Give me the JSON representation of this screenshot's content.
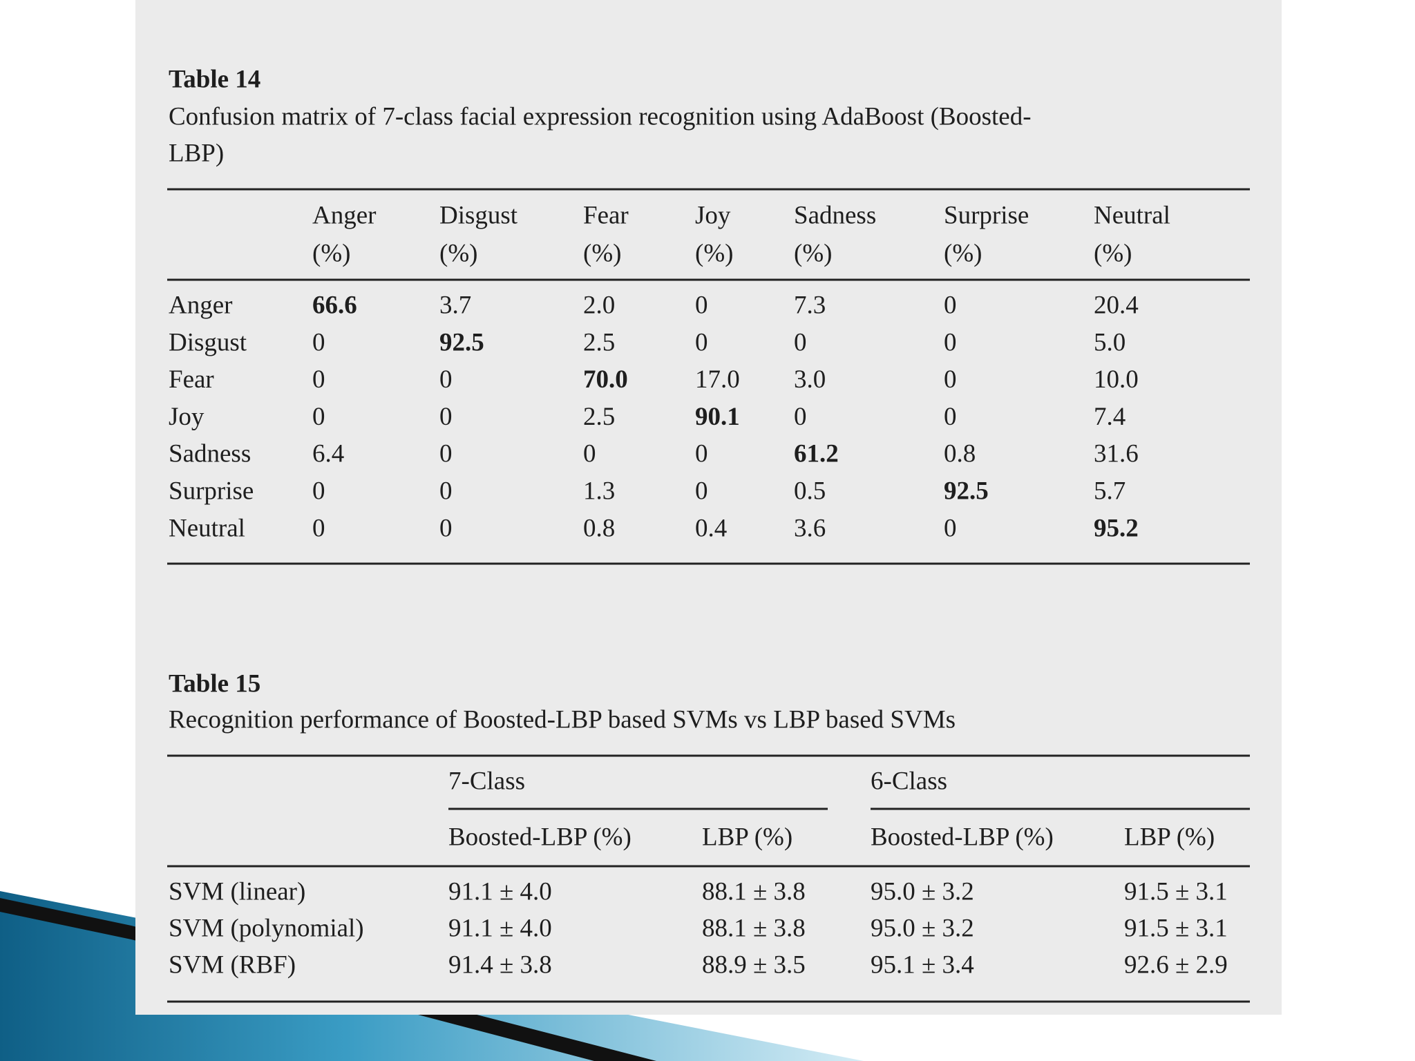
{
  "table14": {
    "label": "Table 14",
    "caption_lines": [
      "Confusion matrix of 7-class facial expression recognition using AdaBoost (Boosted-",
      "LBP)"
    ],
    "columns": [
      {
        "name": "Anger",
        "unit": "(%)"
      },
      {
        "name": "Disgust",
        "unit": "(%)"
      },
      {
        "name": "Fear",
        "unit": "(%)"
      },
      {
        "name": "Joy",
        "unit": "(%)"
      },
      {
        "name": "Sadness",
        "unit": "(%)"
      },
      {
        "name": "Surprise",
        "unit": "(%)"
      },
      {
        "name": "Neutral",
        "unit": "(%)"
      }
    ],
    "rows": [
      {
        "label": "Anger",
        "cells": [
          "66.6",
          "3.7",
          "2.0",
          "0",
          "7.3",
          "0",
          "20.4"
        ]
      },
      {
        "label": "Disgust",
        "cells": [
          "0",
          "92.5",
          "2.5",
          "0",
          "0",
          "0",
          "5.0"
        ]
      },
      {
        "label": "Fear",
        "cells": [
          "0",
          "0",
          "70.0",
          "17.0",
          "3.0",
          "0",
          "10.0"
        ]
      },
      {
        "label": "Joy",
        "cells": [
          "0",
          "0",
          "2.5",
          "90.1",
          "0",
          "0",
          "7.4"
        ]
      },
      {
        "label": "Sadness",
        "cells": [
          "6.4",
          "0",
          "0",
          "0",
          "61.2",
          "0.8",
          "31.6"
        ]
      },
      {
        "label": "Surprise",
        "cells": [
          "0",
          "0",
          "1.3",
          "0",
          "0.5",
          "92.5",
          "5.7"
        ]
      },
      {
        "label": "Neutral",
        "cells": [
          "0",
          "0",
          "0.8",
          "0.4",
          "3.6",
          "0",
          "95.2"
        ]
      }
    ]
  },
  "table15": {
    "label": "Table 15",
    "caption": "Recognition performance of Boosted-LBP based SVMs vs LBP based SVMs",
    "groups": [
      "7-Class",
      "6-Class"
    ],
    "subheaders": [
      "Boosted-LBP (%)",
      "LBP (%)",
      "Boosted-LBP (%)",
      "LBP (%)"
    ],
    "rows": [
      {
        "label": "SVM (linear)",
        "cells": [
          "91.1 ± 4.0",
          "88.1 ± 3.8",
          "95.0 ± 3.2",
          "91.5 ± 3.1"
        ]
      },
      {
        "label": "SVM (polynomial)",
        "cells": [
          "91.1 ± 4.0",
          "88.1 ± 3.8",
          "95.0 ± 3.2",
          "91.5 ± 3.1"
        ]
      },
      {
        "label": "SVM (RBF)",
        "cells": [
          "91.4 ± 3.8",
          "88.9 ± 3.5",
          "95.1 ± 3.4",
          "92.6 ± 2.9"
        ]
      }
    ]
  }
}
